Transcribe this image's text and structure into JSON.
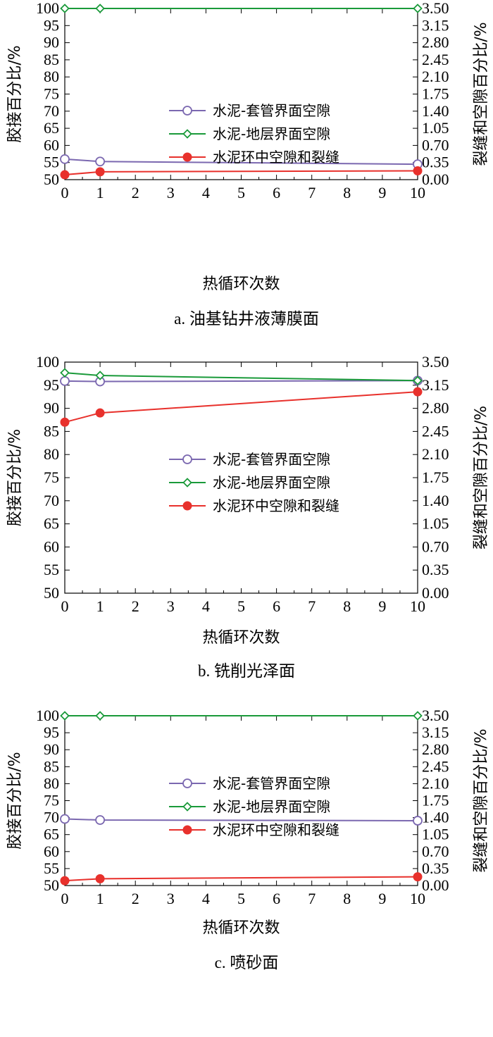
{
  "chart_data": [
    {
      "type": "line",
      "caption": "a. 油基钻井液薄膜面",
      "xlabel": "热循环次数",
      "ylabel_left": "胶接百分比/%",
      "ylabel_right": "裂缝和空隙百分比/%",
      "x_ticks": [
        "0",
        "1",
        "2",
        "3",
        "4",
        "5",
        "6",
        "7",
        "8",
        "9",
        "10"
      ],
      "xlim": [
        0,
        10
      ],
      "ylim_left": [
        50,
        100
      ],
      "ylim_right": [
        0,
        3.5
      ],
      "y_left_ticks": [
        "50",
        "55",
        "60",
        "65",
        "70",
        "75",
        "80",
        "85",
        "90",
        "95",
        "100"
      ],
      "y_right_ticks": [
        "0.00",
        "0.35",
        "0.70",
        "1.05",
        "1.40",
        "1.75",
        "2.10",
        "2.45",
        "2.80",
        "3.15",
        "3.50"
      ],
      "legend_position": "center-right",
      "series": [
        {
          "name": "水泥-套管界面空隙",
          "axis": "left",
          "color": "#7b68b0",
          "marker": "open-circle",
          "x": [
            0,
            1,
            10
          ],
          "y": [
            56.0,
            55.3,
            54.5
          ]
        },
        {
          "name": "水泥-地层界面空隙",
          "axis": "left",
          "color": "#1a9a3a",
          "marker": "open-diamond",
          "x": [
            0,
            1,
            10
          ],
          "y": [
            100,
            100,
            100
          ]
        },
        {
          "name": "水泥环中空隙和裂缝",
          "axis": "right",
          "color": "#e8312c",
          "marker": "filled-circle",
          "x": [
            0,
            1,
            10
          ],
          "y": [
            0.1,
            0.16,
            0.18
          ]
        }
      ]
    },
    {
      "type": "line",
      "caption": "b. 铣削光泽面",
      "xlabel": "热循环次数",
      "ylabel_left": "胶接百分比/%",
      "ylabel_right": "裂缝和空隙百分比/%",
      "x_ticks": [
        "0",
        "1",
        "2",
        "3",
        "4",
        "5",
        "6",
        "7",
        "8",
        "9",
        "10"
      ],
      "xlim": [
        0,
        10
      ],
      "ylim_left": [
        50,
        100
      ],
      "ylim_right": [
        0,
        3.5
      ],
      "y_left_ticks": [
        "50",
        "55",
        "60",
        "65",
        "70",
        "75",
        "80",
        "85",
        "90",
        "95",
        "100"
      ],
      "y_right_ticks": [
        "0.00",
        "0.35",
        "0.70",
        "1.05",
        "1.40",
        "1.75",
        "2.10",
        "2.45",
        "2.80",
        "3.15",
        "3.50"
      ],
      "legend_position": "center-right",
      "series": [
        {
          "name": "水泥-套管界面空隙",
          "axis": "left",
          "color": "#7b68b0",
          "marker": "open-circle",
          "x": [
            0,
            1,
            10
          ],
          "y": [
            95.9,
            95.8,
            96.0
          ]
        },
        {
          "name": "水泥-地层界面空隙",
          "axis": "left",
          "color": "#1a9a3a",
          "marker": "open-diamond",
          "x": [
            0,
            1,
            10
          ],
          "y": [
            97.7,
            97.1,
            96.0
          ]
        },
        {
          "name": "水泥环中空隙和裂缝",
          "axis": "right",
          "color": "#e8312c",
          "marker": "filled-circle",
          "x": [
            0,
            1,
            10
          ],
          "y": [
            2.59,
            2.73,
            3.05
          ]
        }
      ]
    },
    {
      "type": "line",
      "caption": "c. 喷砂面",
      "xlabel": "热循环次数",
      "ylabel_left": "胶接百分比/%",
      "ylabel_right": "裂缝和空隙百分比/%",
      "x_ticks": [
        "0",
        "1",
        "2",
        "3",
        "4",
        "5",
        "6",
        "7",
        "8",
        "9",
        "10"
      ],
      "xlim": [
        0,
        10
      ],
      "ylim_left": [
        50,
        100
      ],
      "ylim_right": [
        0,
        3.5
      ],
      "y_left_ticks": [
        "50",
        "55",
        "60",
        "65",
        "70",
        "75",
        "80",
        "85",
        "90",
        "95",
        "100"
      ],
      "y_right_ticks": [
        "0.00",
        "0.35",
        "0.70",
        "1.05",
        "1.40",
        "1.75",
        "2.10",
        "2.45",
        "2.80",
        "3.15",
        "3.50"
      ],
      "legend_position": "center-right",
      "series": [
        {
          "name": "水泥-套管界面空隙",
          "axis": "left",
          "color": "#7b68b0",
          "marker": "open-circle",
          "x": [
            0,
            1,
            10
          ],
          "y": [
            69.6,
            69.3,
            69.1
          ]
        },
        {
          "name": "水泥-地层界面空隙",
          "axis": "left",
          "color": "#1a9a3a",
          "marker": "open-diamond",
          "x": [
            0,
            1,
            10
          ],
          "y": [
            100,
            100,
            100
          ]
        },
        {
          "name": "水泥环中空隙和裂缝",
          "axis": "right",
          "color": "#e8312c",
          "marker": "filled-circle",
          "x": [
            0,
            1,
            10
          ],
          "y": [
            0.1,
            0.14,
            0.18
          ]
        }
      ]
    }
  ]
}
